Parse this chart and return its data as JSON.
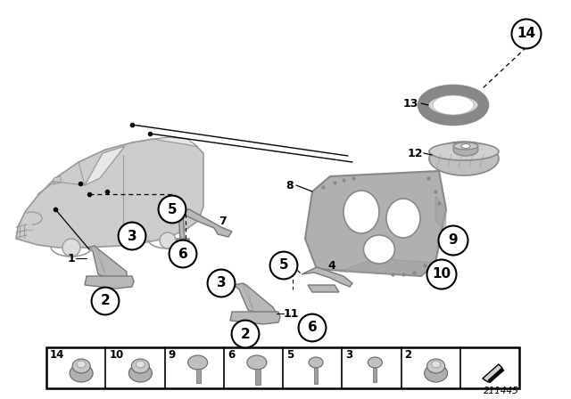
{
  "background_color": "#ffffff",
  "diagram_id": "211445",
  "bottom_bar_numbers": [
    "14",
    "10",
    "9",
    "6",
    "5",
    "3",
    "2",
    ""
  ],
  "car_color": "#cccccc",
  "car_edge": "#999999",
  "part_color": "#b8b8b8",
  "part_edge": "#777777",
  "plate_color": "#b0b0b0",
  "plate_edge": "#888888",
  "fig_width": 6.4,
  "fig_height": 4.48,
  "callout_r": 13
}
